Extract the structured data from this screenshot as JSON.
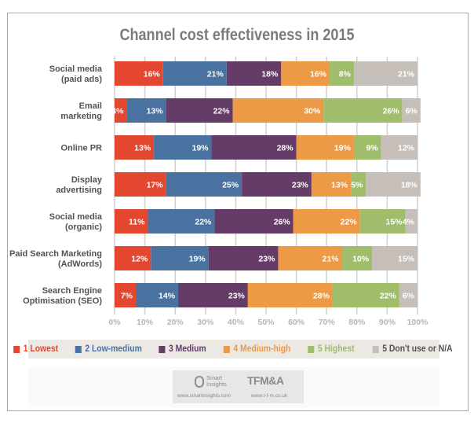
{
  "chart_data": {
    "type": "bar",
    "orientation": "horizontal",
    "stacked": true,
    "title": "Channel cost effectiveness in 2015",
    "xlabel": "",
    "ylabel": "",
    "xlim": [
      0,
      100
    ],
    "grid": true,
    "legend_position": "bottom",
    "x_ticks": [
      "0%",
      "10%",
      "20%",
      "30%",
      "40%",
      "50%",
      "60%",
      "70%",
      "80%",
      "90%",
      "100%"
    ],
    "categories": [
      [
        "Social media",
        "(paid ads)"
      ],
      [
        "Email",
        "marketing"
      ],
      [
        "Online PR"
      ],
      [
        "Display",
        "advertising"
      ],
      [
        "Social media",
        "(organic)"
      ],
      [
        "Paid Search Marketing",
        "(AdWords)"
      ],
      [
        "Search Engine",
        "Optimisation (SEO)"
      ]
    ],
    "series": [
      {
        "name": "1 Lowest",
        "color": "#e4472f",
        "values": [
          16,
          4,
          13,
          17,
          11,
          12,
          7
        ]
      },
      {
        "name": "2 Low-medium",
        "color": "#4a72a0",
        "values": [
          21,
          13,
          19,
          25,
          22,
          19,
          14
        ]
      },
      {
        "name": "3 Medium",
        "color": "#653c68",
        "values": [
          18,
          22,
          28,
          23,
          26,
          23,
          23
        ]
      },
      {
        "name": "4 Medium-high",
        "color": "#ec9a45",
        "values": [
          16,
          30,
          19,
          13,
          22,
          21,
          28
        ]
      },
      {
        "name": "5 Highest",
        "color": "#a0bd6b",
        "values": [
          8,
          26,
          9,
          5,
          15,
          10,
          22
        ]
      },
      {
        "name": "5 Don't use or N/A",
        "color": "#c6bfb9",
        "values": [
          21,
          6,
          12,
          18,
          4,
          15,
          6
        ]
      }
    ],
    "legend_text_colors": [
      "#e4472f",
      "#4a72a0",
      "#653c68",
      "#ec9a45",
      "#a0bd6b",
      "#55524f"
    ]
  },
  "footer": {
    "smartinsights_line1": "Smart",
    "smartinsights_line2": "Insights",
    "smartinsights_url": "www.smartinsights.com",
    "tfma_logo": "TFM&A",
    "tfma_url": "www.t-f-m.co.uk"
  }
}
